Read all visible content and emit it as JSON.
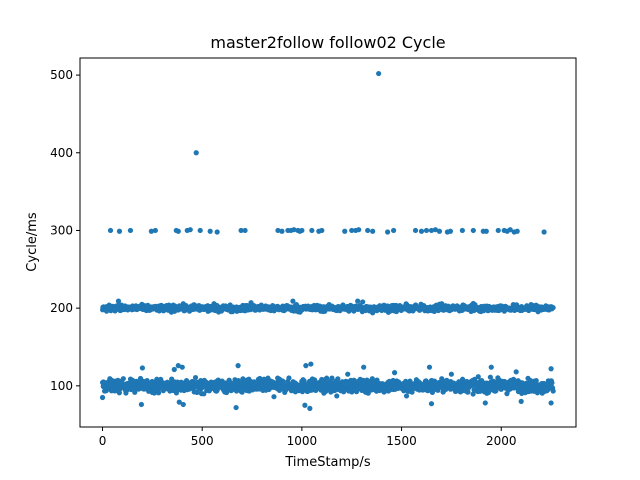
{
  "chart_data": {
    "type": "scatter",
    "title": "master2follow follow02 Cycle",
    "xlabel": "TimeStamp/s",
    "ylabel": "Cycle/ms",
    "xlim": [
      -113,
      2375
    ],
    "ylim": [
      47,
      522
    ],
    "xticks": [
      0,
      500,
      1000,
      1500,
      2000
    ],
    "yticks": [
      100,
      200,
      300,
      400,
      500
    ],
    "grid": false,
    "legend": "none",
    "marker_color": "#1f77b4",
    "x_range_of_data": [
      0,
      2260
    ],
    "bands": [
      {
        "name": "",
        "center": 100,
        "spread": 4,
        "x_range": [
          0,
          2260
        ]
      },
      {
        "name": "",
        "center": 200,
        "spread": 2,
        "x_range": [
          0,
          2260
        ]
      }
    ],
    "series": [
      {
        "values_note": "",
        "points": [
          [
            1385,
            502
          ],
          [
            470,
            400
          ],
          [
            40,
            300
          ],
          [
            85,
            299
          ],
          [
            140,
            300
          ],
          [
            245,
            299
          ],
          [
            265,
            300
          ],
          [
            370,
            300
          ],
          [
            380,
            299
          ],
          [
            425,
            300
          ],
          [
            440,
            301
          ],
          [
            490,
            300
          ],
          [
            540,
            299
          ],
          [
            575,
            298
          ],
          [
            695,
            300
          ],
          [
            715,
            300
          ],
          [
            880,
            300
          ],
          [
            900,
            299
          ],
          [
            930,
            300
          ],
          [
            945,
            300
          ],
          [
            960,
            301
          ],
          [
            980,
            300
          ],
          [
            990,
            299
          ],
          [
            1000,
            300
          ],
          [
            1050,
            300
          ],
          [
            1085,
            299
          ],
          [
            1100,
            300
          ],
          [
            1215,
            299
          ],
          [
            1250,
            300
          ],
          [
            1270,
            300
          ],
          [
            1285,
            301
          ],
          [
            1330,
            300
          ],
          [
            1355,
            299
          ],
          [
            1430,
            298
          ],
          [
            1460,
            300
          ],
          [
            1570,
            300
          ],
          [
            1600,
            299
          ],
          [
            1625,
            300
          ],
          [
            1650,
            300
          ],
          [
            1670,
            301
          ],
          [
            1690,
            299
          ],
          [
            1730,
            298
          ],
          [
            1745,
            299
          ],
          [
            1805,
            300
          ],
          [
            1860,
            300
          ],
          [
            1910,
            299
          ],
          [
            1925,
            299
          ],
          [
            1985,
            300
          ],
          [
            2015,
            300
          ],
          [
            2030,
            299
          ],
          [
            2045,
            301
          ],
          [
            2065,
            298
          ],
          [
            2080,
            299
          ],
          [
            2215,
            298
          ],
          [
            80,
            209
          ],
          [
            385,
            203
          ],
          [
            745,
            207
          ],
          [
            955,
            209
          ],
          [
            1280,
            209
          ],
          [
            1305,
            208
          ],
          [
            1320,
            197
          ],
          [
            1355,
            194
          ],
          [
            1690,
            205
          ],
          [
            1860,
            206
          ],
          [
            1400,
            197
          ],
          [
            2095,
            197
          ],
          [
            200,
            123
          ],
          [
            360,
            121
          ],
          [
            380,
            126
          ],
          [
            400,
            124
          ],
          [
            680,
            126
          ],
          [
            1020,
            126
          ],
          [
            1045,
            128
          ],
          [
            1310,
            124
          ],
          [
            1465,
            117
          ],
          [
            1640,
            124
          ],
          [
            1950,
            124
          ],
          [
            2250,
            122
          ],
          [
            2075,
            118
          ],
          [
            1750,
            115
          ],
          [
            1230,
            115
          ],
          [
            0,
            85
          ],
          [
            195,
            76
          ],
          [
            385,
            79
          ],
          [
            405,
            76
          ],
          [
            670,
            72
          ],
          [
            1015,
            75
          ],
          [
            1040,
            71
          ],
          [
            1650,
            77
          ],
          [
            1920,
            78
          ],
          [
            2100,
            80
          ],
          [
            2250,
            78
          ],
          [
            1525,
            87
          ],
          [
            860,
            86
          ],
          [
            1175,
            87
          ]
        ]
      }
    ]
  }
}
